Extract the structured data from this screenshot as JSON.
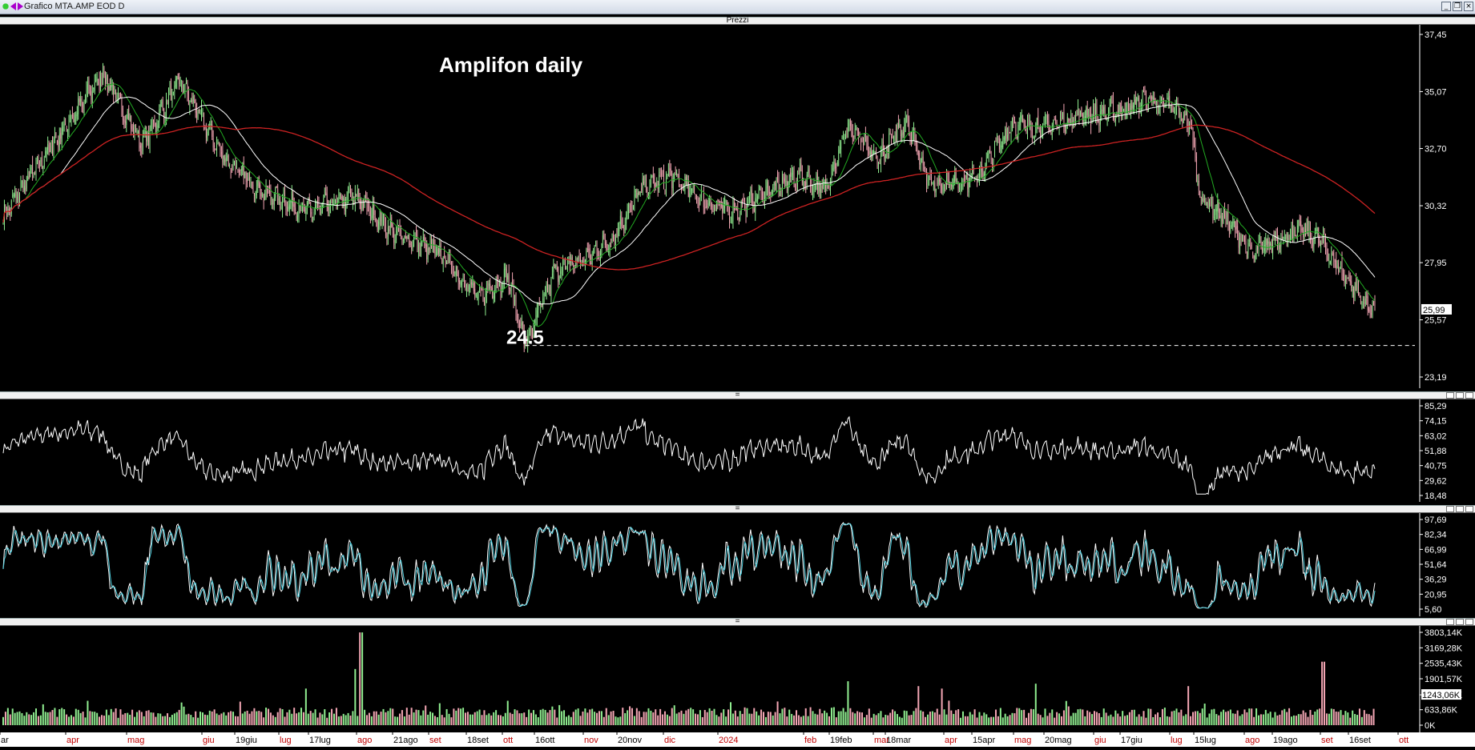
{
  "window": {
    "title": "Grafico MTA.AMP EOD D"
  },
  "price_pane": {
    "header": "Prezzi",
    "annotation_title": "Amplifon daily",
    "support_label": "24.5",
    "support_value": 24.5,
    "last_price_label": "25,99",
    "y_ticks": [
      "37,45",
      "35,07",
      "32,70",
      "30,32",
      "27,95",
      "25,57",
      "23,19"
    ]
  },
  "osc1_pane": {
    "header": "",
    "y_ticks": [
      "85,29",
      "74,15",
      "63,02",
      "51,88",
      "40,75",
      "29,62",
      "18,48"
    ]
  },
  "osc2_pane": {
    "header": "",
    "y_ticks": [
      "97,69",
      "82,34",
      "66,99",
      "51,64",
      "36,29",
      "20,95",
      "5,60"
    ]
  },
  "volume_pane": {
    "header": "",
    "last_volume_label": "1243,06K",
    "y_ticks": [
      "3803,14K",
      "3169,28K",
      "2535,43K",
      "1901,57K",
      "1243,06K",
      "633,86K",
      "0K"
    ]
  },
  "x_axis": {
    "labels": [
      {
        "text": "ar",
        "red": false
      },
      {
        "text": "apr",
        "red": true
      },
      {
        "text": "mag",
        "red": true
      },
      {
        "text": "giu",
        "red": true
      },
      {
        "text": "19giu",
        "red": false
      },
      {
        "text": "lug",
        "red": true
      },
      {
        "text": "17lug",
        "red": false
      },
      {
        "text": "ago",
        "red": true
      },
      {
        "text": "21ago",
        "red": false
      },
      {
        "text": "set",
        "red": true
      },
      {
        "text": "18set",
        "red": false
      },
      {
        "text": "ott",
        "red": true
      },
      {
        "text": "16ott",
        "red": false
      },
      {
        "text": "nov",
        "red": true
      },
      {
        "text": "20nov",
        "red": false
      },
      {
        "text": "dic",
        "red": true
      },
      {
        "text": "2024",
        "red": true
      },
      {
        "text": "feb",
        "red": true
      },
      {
        "text": "19feb",
        "red": false
      },
      {
        "text": "mar",
        "red": true
      },
      {
        "text": "18mar",
        "red": false
      },
      {
        "text": "apr",
        "red": true
      },
      {
        "text": "15apr",
        "red": false
      },
      {
        "text": "mag",
        "red": true
      },
      {
        "text": "20mag",
        "red": false
      },
      {
        "text": "giu",
        "red": true
      },
      {
        "text": "17giu",
        "red": false
      },
      {
        "text": "lug",
        "red": true
      },
      {
        "text": "15lug",
        "red": false
      },
      {
        "text": "ago",
        "red": true
      },
      {
        "text": "19ago",
        "red": false
      },
      {
        "text": "set",
        "red": true
      },
      {
        "text": "16set",
        "red": false
      },
      {
        "text": "ott",
        "red": true
      }
    ]
  },
  "colors": {
    "background": "#000000",
    "bull_candle": "#90ee90",
    "bear_candle": "#f4a6b4",
    "sma_fast": "#22aa22",
    "sma_mid": "#ffffff",
    "sma_slow": "#cc2222",
    "osc_line": "#ffffff",
    "stoch_k": "#ffffff",
    "stoch_d": "#4fd0e0",
    "axis_text": "#ffffff"
  },
  "chart_data": {
    "type": "line",
    "title": "Amplifon daily",
    "price_anchors": [
      [
        0,
        29.9
      ],
      [
        50,
        33.4
      ],
      [
        85,
        35.8
      ],
      [
        118,
        32.9
      ],
      [
        150,
        35.5
      ],
      [
        190,
        32.2
      ],
      [
        220,
        30.9
      ],
      [
        260,
        30.1
      ],
      [
        300,
        30.7
      ],
      [
        330,
        29.3
      ],
      [
        375,
        28.2
      ],
      [
        405,
        26.5
      ],
      [
        430,
        27.4
      ],
      [
        445,
        24.5
      ],
      [
        470,
        27.6
      ],
      [
        500,
        28.2
      ],
      [
        520,
        29.0
      ],
      [
        545,
        31.1
      ],
      [
        570,
        31.5
      ],
      [
        600,
        30.4
      ],
      [
        625,
        30.1
      ],
      [
        650,
        30.9
      ],
      [
        680,
        31.6
      ],
      [
        700,
        30.9
      ],
      [
        720,
        33.7
      ],
      [
        745,
        32.2
      ],
      [
        770,
        33.9
      ],
      [
        790,
        31.2
      ],
      [
        830,
        31.5
      ],
      [
        860,
        33.7
      ],
      [
        890,
        33.6
      ],
      [
        920,
        34.1
      ],
      [
        950,
        34.2
      ],
      [
        975,
        34.8
      ],
      [
        1000,
        34.3
      ],
      [
        1012,
        33.7
      ],
      [
        1020,
        30.7
      ],
      [
        1040,
        29.9
      ],
      [
        1065,
        28.3
      ],
      [
        1085,
        28.9
      ],
      [
        1105,
        29.3
      ],
      [
        1120,
        29.0
      ],
      [
        1140,
        27.6
      ],
      [
        1165,
        25.99
      ]
    ],
    "support_level": 24.5,
    "ylim": [
      23.19,
      37.45
    ],
    "ma_labels": []
  }
}
